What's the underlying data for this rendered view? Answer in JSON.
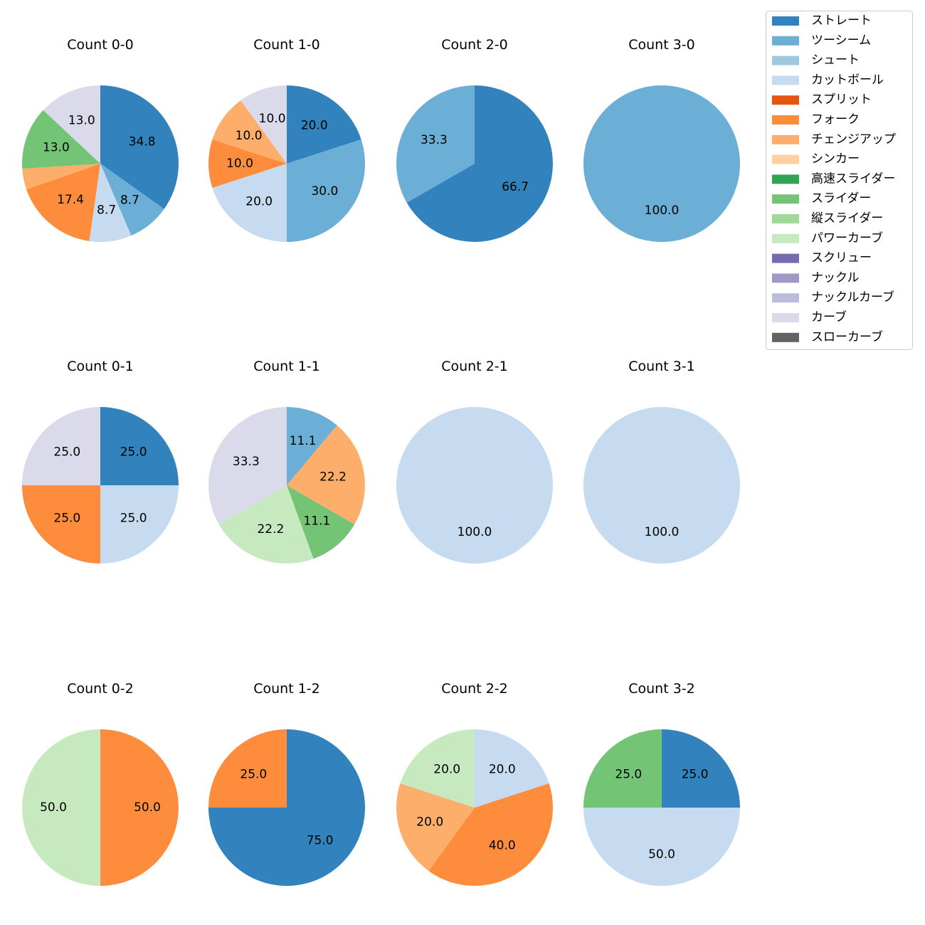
{
  "chart_data": {
    "type": "pie",
    "start_angle": "top",
    "direction": "clockwise",
    "legend": {
      "placement": "top-right",
      "entries": [
        {
          "name": "ストレート",
          "color": "#3182bd"
        },
        {
          "name": "ツーシーム",
          "color": "#6baed6"
        },
        {
          "name": "シュート",
          "color": "#9ecae1"
        },
        {
          "name": "カットボール",
          "color": "#c6dbef"
        },
        {
          "name": "スプリット",
          "color": "#e6550d"
        },
        {
          "name": "フォーク",
          "color": "#fd8d3c"
        },
        {
          "name": "チェンジアップ",
          "color": "#fdae6b"
        },
        {
          "name": "シンカー",
          "color": "#fdd0a2"
        },
        {
          "name": "高速スライダー",
          "color": "#31a354"
        },
        {
          "name": "スライダー",
          "color": "#74c476"
        },
        {
          "name": "縦スライダー",
          "color": "#a1d99b"
        },
        {
          "name": "パワーカーブ",
          "color": "#c7e9c0"
        },
        {
          "name": "スクリュー",
          "color": "#756bb1"
        },
        {
          "name": "ナックル",
          "color": "#9e9ac8"
        },
        {
          "name": "ナックルカーブ",
          "color": "#bcbddc"
        },
        {
          "name": "カーブ",
          "color": "#dadaeb"
        },
        {
          "name": "スローカーブ",
          "color": "#636363"
        }
      ]
    },
    "pies": [
      {
        "title": "Count 0-0",
        "row": 0,
        "col": 0,
        "slices": [
          {
            "type": "ストレート",
            "value": 34.8,
            "label": "34.8"
          },
          {
            "type": "ツーシーム",
            "value": 8.7,
            "label": "8.7"
          },
          {
            "type": "カットボール",
            "value": 8.7,
            "label": "8.7"
          },
          {
            "type": "フォーク",
            "value": 17.4,
            "label": "17.4"
          },
          {
            "type": "チェンジアップ",
            "value": 4.3,
            "label": ""
          },
          {
            "type": "スライダー",
            "value": 13.0,
            "label": "13.0"
          },
          {
            "type": "カーブ",
            "value": 13.0,
            "label": "13.0"
          }
        ]
      },
      {
        "title": "Count 1-0",
        "row": 0,
        "col": 1,
        "slices": [
          {
            "type": "ストレート",
            "value": 20.0,
            "label": "20.0"
          },
          {
            "type": "ツーシーム",
            "value": 30.0,
            "label": "30.0"
          },
          {
            "type": "カットボール",
            "value": 20.0,
            "label": "20.0"
          },
          {
            "type": "フォーク",
            "value": 10.0,
            "label": "10.0"
          },
          {
            "type": "チェンジアップ",
            "value": 10.0,
            "label": "10.0"
          },
          {
            "type": "カーブ",
            "value": 10.0,
            "label": "10.0"
          }
        ]
      },
      {
        "title": "Count 2-0",
        "row": 0,
        "col": 2,
        "slices": [
          {
            "type": "ストレート",
            "value": 66.7,
            "label": "66.7"
          },
          {
            "type": "ツーシーム",
            "value": 33.3,
            "label": "33.3"
          }
        ]
      },
      {
        "title": "Count 3-0",
        "row": 0,
        "col": 3,
        "slices": [
          {
            "type": "ツーシーム",
            "value": 100.0,
            "label": "100.0"
          }
        ]
      },
      {
        "title": "Count 0-1",
        "row": 1,
        "col": 0,
        "slices": [
          {
            "type": "ストレート",
            "value": 25.0,
            "label": "25.0"
          },
          {
            "type": "カットボール",
            "value": 25.0,
            "label": "25.0"
          },
          {
            "type": "フォーク",
            "value": 25.0,
            "label": "25.0"
          },
          {
            "type": "カーブ",
            "value": 25.0,
            "label": "25.0"
          }
        ]
      },
      {
        "title": "Count 1-1",
        "row": 1,
        "col": 1,
        "slices": [
          {
            "type": "ツーシーム",
            "value": 11.1,
            "label": "11.1"
          },
          {
            "type": "チェンジアップ",
            "value": 22.2,
            "label": "22.2"
          },
          {
            "type": "スライダー",
            "value": 11.1,
            "label": "11.1"
          },
          {
            "type": "パワーカーブ",
            "value": 22.2,
            "label": "22.2"
          },
          {
            "type": "カーブ",
            "value": 33.3,
            "label": "33.3"
          }
        ]
      },
      {
        "title": "Count 2-1",
        "row": 1,
        "col": 2,
        "slices": [
          {
            "type": "カットボール",
            "value": 100.0,
            "label": "100.0"
          }
        ]
      },
      {
        "title": "Count 3-1",
        "row": 1,
        "col": 3,
        "slices": [
          {
            "type": "カットボール",
            "value": 100.0,
            "label": "100.0"
          }
        ]
      },
      {
        "title": "Count 0-2",
        "row": 2,
        "col": 0,
        "slices": [
          {
            "type": "フォーク",
            "value": 50.0,
            "label": "50.0"
          },
          {
            "type": "パワーカーブ",
            "value": 50.0,
            "label": "50.0"
          }
        ]
      },
      {
        "title": "Count 1-2",
        "row": 2,
        "col": 1,
        "slices": [
          {
            "type": "ストレート",
            "value": 75.0,
            "label": "75.0"
          },
          {
            "type": "フォーク",
            "value": 25.0,
            "label": "25.0"
          }
        ]
      },
      {
        "title": "Count 2-2",
        "row": 2,
        "col": 2,
        "slices": [
          {
            "type": "カットボール",
            "value": 20.0,
            "label": "20.0"
          },
          {
            "type": "フォーク",
            "value": 40.0,
            "label": "40.0"
          },
          {
            "type": "チェンジアップ",
            "value": 20.0,
            "label": "20.0"
          },
          {
            "type": "パワーカーブ",
            "value": 20.0,
            "label": "20.0"
          }
        ]
      },
      {
        "title": "Count 3-2",
        "row": 2,
        "col": 3,
        "slices": [
          {
            "type": "ストレート",
            "value": 25.0,
            "label": "25.0"
          },
          {
            "type": "カットボール",
            "value": 50.0,
            "label": "50.0"
          },
          {
            "type": "スライダー",
            "value": 25.0,
            "label": "25.0"
          }
        ]
      }
    ]
  }
}
